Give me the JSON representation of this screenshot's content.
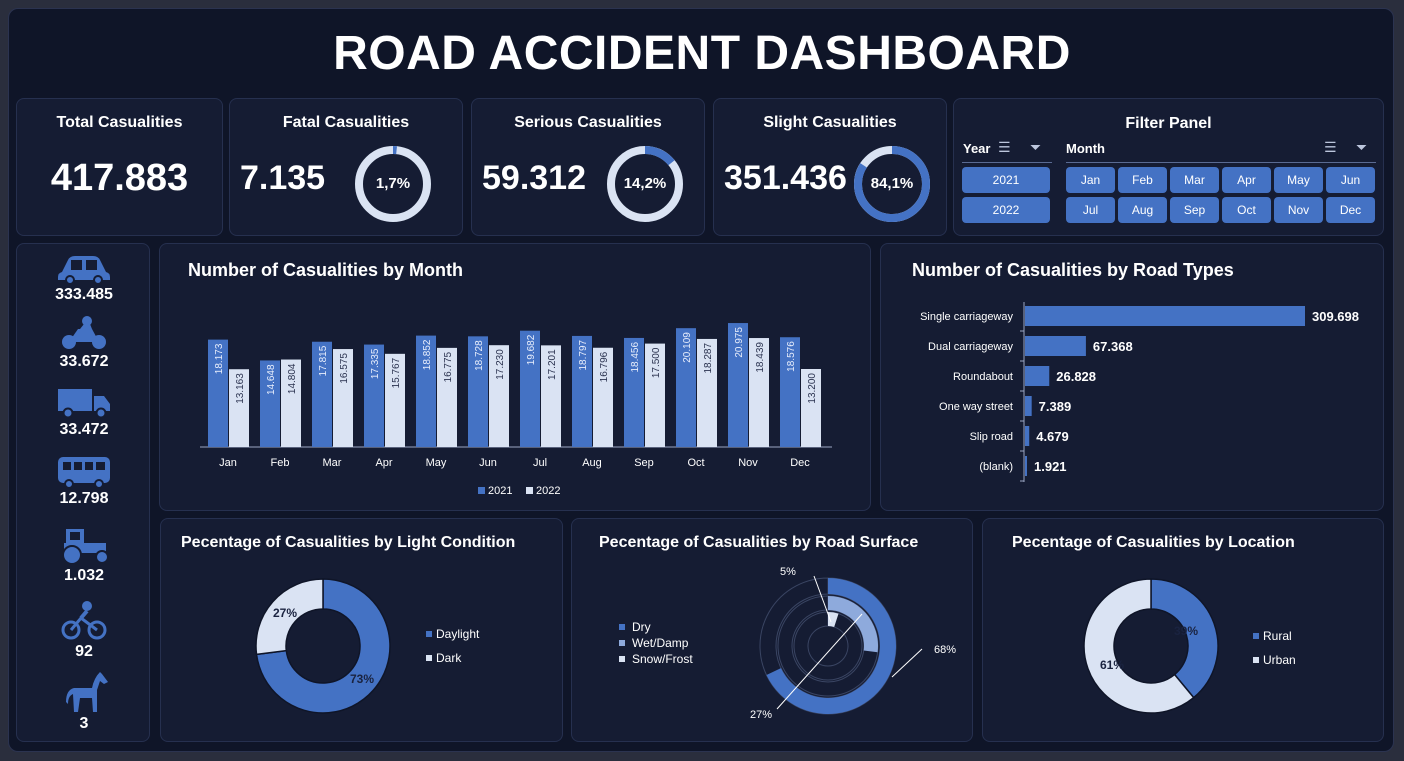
{
  "title": "ROAD ACCIDENT DASHBOARD",
  "kpis": {
    "total": {
      "label": "Total Casualities",
      "value": "417.883"
    },
    "fatal": {
      "label": "Fatal Casualities",
      "value": "7.135",
      "pct_label": "1,7%",
      "pct": 1.7
    },
    "serious": {
      "label": "Serious Casualities",
      "value": "59.312",
      "pct_label": "14,2%",
      "pct": 14.2
    },
    "slight": {
      "label": "Slight Casualities",
      "value": "351.436",
      "pct_label": "84,1%",
      "pct": 84.1
    }
  },
  "filter": {
    "title": "Filter Panel",
    "year_label": "Year",
    "month_label": "Month",
    "years": [
      "2021",
      "2022"
    ],
    "months": [
      "Jan",
      "Feb",
      "Mar",
      "Apr",
      "May",
      "Jun",
      "Jul",
      "Aug",
      "Sep",
      "Oct",
      "Nov",
      "Dec"
    ]
  },
  "vehicles": [
    {
      "icon": "car-icon",
      "value": "333.485"
    },
    {
      "icon": "motorcycle-icon",
      "value": "33.672"
    },
    {
      "icon": "truck-icon",
      "value": "33.472"
    },
    {
      "icon": "bus-icon",
      "value": "12.798"
    },
    {
      "icon": "tractor-icon",
      "value": "1.032"
    },
    {
      "icon": "bicycle-icon",
      "value": "92"
    },
    {
      "icon": "horse-icon",
      "value": "3"
    }
  ],
  "colors": {
    "primary": "#4472c4",
    "secondary": "#dae3f3",
    "background": "#0f1528",
    "card": "#151c33"
  },
  "chart_data": [
    {
      "type": "bar",
      "title": "Number of Casualities by Month",
      "categories": [
        "Jan",
        "Feb",
        "Mar",
        "Apr",
        "May",
        "Jun",
        "Jul",
        "Aug",
        "Sep",
        "Oct",
        "Nov",
        "Dec"
      ],
      "series": [
        {
          "name": "2021",
          "values": [
            18173,
            14648,
            17815,
            17335,
            18852,
            18728,
            19682,
            18797,
            18456,
            20109,
            20975,
            18576
          ],
          "labels": [
            "18.173",
            "14.648",
            "17.815",
            "17.335",
            "18.852",
            "18.728",
            "19.682",
            "18.797",
            "18.456",
            "20.109",
            "20.975",
            "18.576"
          ]
        },
        {
          "name": "2022",
          "values": [
            13163,
            14804,
            16575,
            15767,
            16775,
            17230,
            17201,
            16796,
            17500,
            18287,
            18439,
            13200
          ],
          "labels": [
            "13.163",
            "14.804",
            "16.575",
            "15.767",
            "16.775",
            "17.230",
            "17.201",
            "16.796",
            "17.500",
            "18.287",
            "18.439",
            "13.200"
          ]
        }
      ],
      "legend": "bottom"
    },
    {
      "type": "bar",
      "orientation": "horizontal",
      "title": "Number of Casualities by Road Types",
      "categories": [
        "Single carriageway",
        "Dual carriageway",
        "Roundabout",
        "One way street",
        "Slip road",
        "(blank)"
      ],
      "values": [
        309698,
        67368,
        26828,
        7389,
        4679,
        1921
      ],
      "labels": [
        "309.698",
        "67.368",
        "26.828",
        "7.389",
        "4.679",
        "1.921"
      ]
    },
    {
      "type": "pie",
      "title": "Pecentage of Casualities by Light Condition",
      "categories": [
        "Daylight",
        "Dark"
      ],
      "values": [
        73,
        27
      ],
      "labels": [
        "73%",
        "27%"
      ],
      "legend": "right"
    },
    {
      "type": "pie",
      "title": "Pecentage of Casualities by Road Surface",
      "categories": [
        "Dry",
        "Wet/Damp",
        "Snow/Frost"
      ],
      "values": [
        68,
        27,
        5
      ],
      "labels": [
        "68%",
        "27%",
        "5%"
      ],
      "legend": "left"
    },
    {
      "type": "pie",
      "title": "Pecentage of Casualities by Location",
      "categories": [
        "Rural",
        "Urban"
      ],
      "values": [
        39,
        61
      ],
      "labels": [
        "39%",
        "61%"
      ],
      "legend": "right"
    }
  ]
}
